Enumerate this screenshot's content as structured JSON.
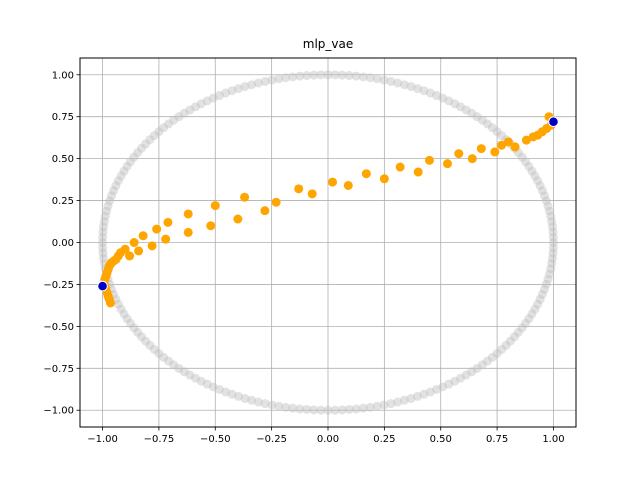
{
  "chart_data": {
    "type": "scatter",
    "title": "mlp_vae",
    "xlabel": "",
    "ylabel": "",
    "xlim": [
      -1.1,
      1.1
    ],
    "ylim": [
      -1.1,
      1.1
    ],
    "grid": true,
    "xticks": [
      -1.0,
      -0.75,
      -0.5,
      -0.25,
      0.0,
      0.25,
      0.5,
      0.75,
      1.0
    ],
    "yticks": [
      -1.0,
      -0.75,
      -0.5,
      -0.25,
      0.0,
      0.25,
      0.5,
      0.75,
      1.0
    ],
    "xtick_labels": [
      "−1.00",
      "−0.75",
      "−0.50",
      "−0.25",
      "0.00",
      "0.25",
      "0.50",
      "0.75",
      "1.00"
    ],
    "ytick_labels": [
      "−1.00",
      "−0.75",
      "−0.50",
      "−0.25",
      "0.00",
      "0.25",
      "0.50",
      "0.75",
      "1.00"
    ],
    "series": [
      {
        "shape": "circle",
        "center": [
          0,
          0
        ],
        "radius": 1.0,
        "point_count": 200,
        "color": "#bfbfbf"
      },
      {
        "color": "#ffa500",
        "x": [
          -0.99,
          -0.985,
          -0.98,
          -0.975,
          -0.97,
          -0.965,
          -0.96,
          -0.95,
          -0.94,
          -0.93,
          -0.92,
          -0.9,
          -0.88,
          -0.86,
          -0.84,
          -0.82,
          -0.78,
          -0.76,
          -0.72,
          -0.71,
          -0.62,
          -0.62,
          -0.52,
          -0.5,
          -0.4,
          -0.37,
          -0.28,
          -0.23,
          -0.13,
          -0.07,
          0.02,
          0.09,
          0.17,
          0.25,
          0.32,
          0.4,
          0.45,
          0.53,
          0.58,
          0.64,
          0.68,
          0.74,
          0.77,
          0.8,
          0.83,
          0.88,
          0.91,
          0.93,
          0.95,
          0.97,
          0.99,
          0.995,
          0.98,
          -0.99,
          -0.985,
          -0.98,
          -0.975,
          -0.97,
          -0.965
        ],
        "y": [
          -0.22,
          -0.2,
          -0.18,
          -0.16,
          -0.14,
          -0.13,
          -0.12,
          -0.11,
          -0.1,
          -0.08,
          -0.06,
          -0.04,
          -0.08,
          0.0,
          -0.05,
          0.04,
          -0.02,
          0.08,
          0.02,
          0.12,
          0.06,
          0.17,
          0.1,
          0.22,
          0.14,
          0.27,
          0.19,
          0.24,
          0.32,
          0.29,
          0.36,
          0.34,
          0.41,
          0.38,
          0.45,
          0.42,
          0.49,
          0.47,
          0.53,
          0.5,
          0.56,
          0.54,
          0.58,
          0.6,
          0.57,
          0.61,
          0.63,
          0.64,
          0.66,
          0.68,
          0.7,
          0.73,
          0.75,
          -0.26,
          -0.28,
          -0.3,
          -0.32,
          -0.34,
          -0.36
        ]
      },
      {
        "color": "#0000cc",
        "edgecolor": "#ffffff",
        "x": [
          -1.0,
          1.0
        ],
        "y": [
          -0.26,
          0.72
        ]
      }
    ]
  }
}
